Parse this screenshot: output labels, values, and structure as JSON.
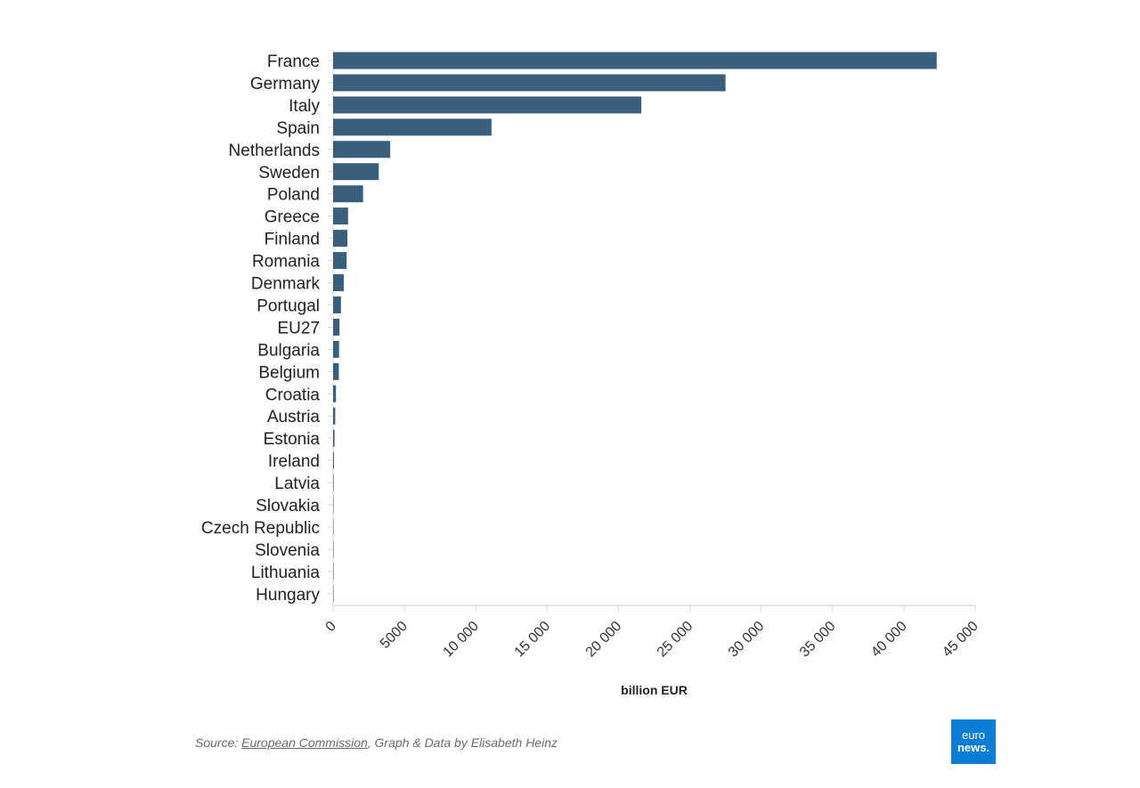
{
  "chart_data": {
    "type": "bar",
    "orientation": "horizontal",
    "categories": [
      "France",
      "Germany",
      "Italy",
      "Spain",
      "Netherlands",
      "Sweden",
      "Poland",
      "Greece",
      "Finland",
      "Romania",
      "Denmark",
      "Portugal",
      "EU27",
      "Bulgaria",
      "Belgium",
      "Croatia",
      "Austria",
      "Estonia",
      "Ireland",
      "Latvia",
      "Slovakia",
      "Czech Republic",
      "Slovenia",
      "Lithuania",
      "Hungary"
    ],
    "values": [
      42300,
      27500,
      21600,
      11100,
      4000,
      3200,
      2100,
      1050,
      1000,
      950,
      750,
      550,
      450,
      420,
      400,
      200,
      150,
      100,
      60,
      40,
      20,
      15,
      10,
      5,
      3
    ],
    "xlabel": "billion EUR",
    "xlim": [
      0,
      45000
    ],
    "xticks": [
      0,
      5000,
      10000,
      15000,
      20000,
      25000,
      30000,
      35000,
      40000,
      45000
    ],
    "xtick_labels": [
      "0",
      "5000",
      "10 000",
      "15 000",
      "20 000",
      "25 000",
      "30 000",
      "35 000",
      "40 000",
      "45 000"
    ],
    "bar_color": "#3a5e7e",
    "grid": false,
    "legend": "none"
  },
  "footer": {
    "source_prefix": "Source: ",
    "source_link": "European Commission",
    "source_suffix": ", Graph & Data by Elisabeth Heinz"
  },
  "logo": {
    "line1": "euro",
    "line2": "news.",
    "color": "#0a7dd6"
  }
}
